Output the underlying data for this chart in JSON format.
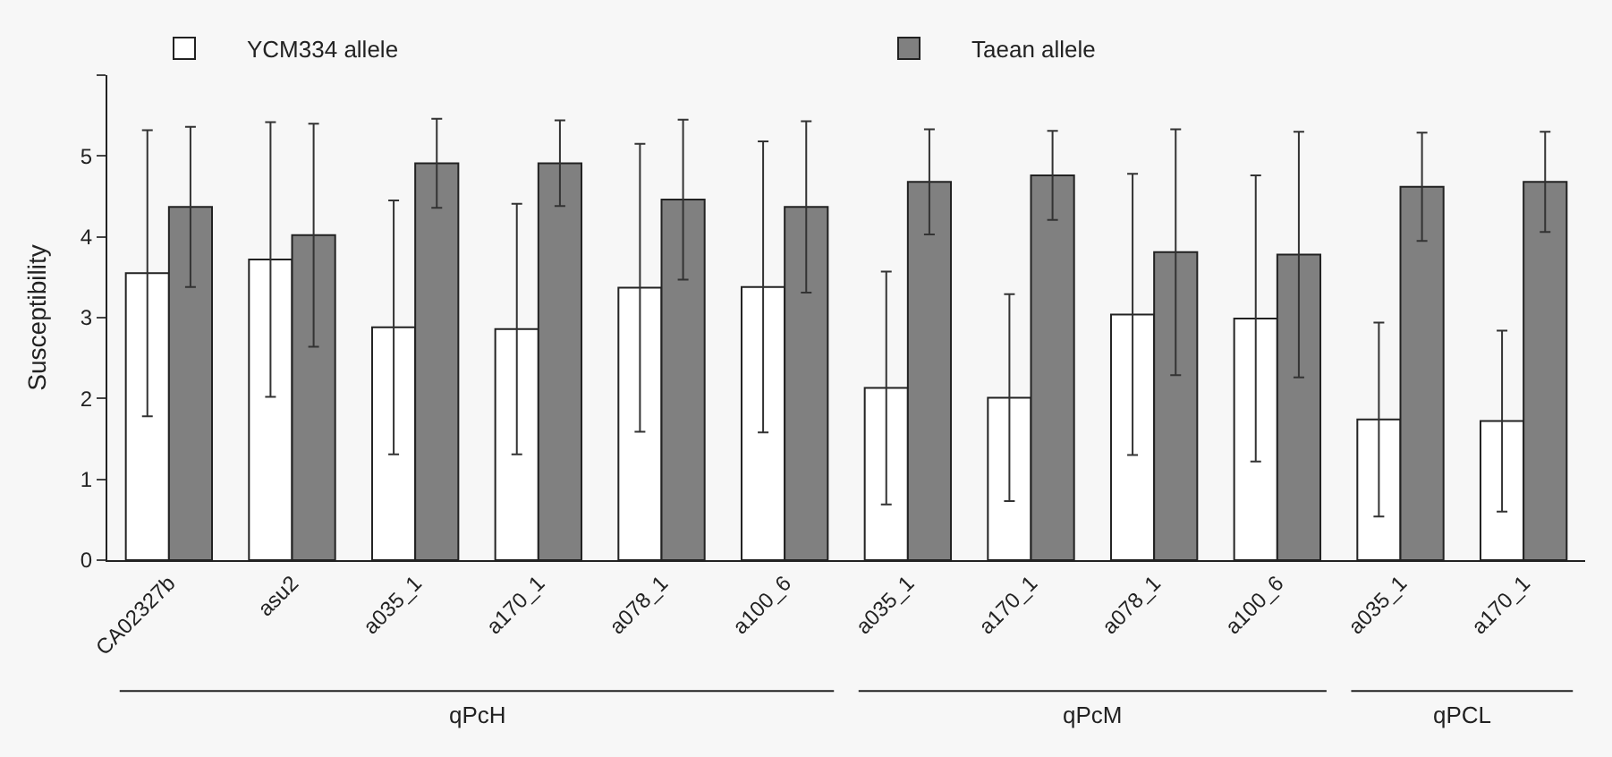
{
  "chart_data": {
    "type": "bar",
    "ylabel": "Susceptibility",
    "categories": [
      "CA02327b",
      "asu2",
      "a035_1",
      "a170_1",
      "a078_1",
      "a100_6",
      "a035_1",
      "a170_1",
      "a078_1",
      "a100_6",
      "a035_1",
      "a170_1"
    ],
    "series": [
      {
        "name": "YCM334 allele",
        "color": "#ffffff",
        "values": [
          3.55,
          3.72,
          2.88,
          2.86,
          3.37,
          3.38,
          2.13,
          2.01,
          3.04,
          2.99,
          1.74,
          1.72
        ],
        "errors": [
          1.77,
          1.7,
          1.57,
          1.55,
          1.78,
          1.8,
          1.44,
          1.28,
          1.74,
          1.77,
          1.2,
          1.12
        ]
      },
      {
        "name": "Taean allele",
        "color": "#808080",
        "values": [
          4.37,
          4.02,
          4.91,
          4.91,
          4.46,
          4.37,
          4.68,
          4.76,
          3.81,
          3.78,
          4.62,
          4.68
        ],
        "errors": [
          0.99,
          1.38,
          0.55,
          0.53,
          0.99,
          1.06,
          0.65,
          0.55,
          1.52,
          1.52,
          0.67,
          0.62
        ]
      }
    ],
    "ylim": [
      0,
      6
    ],
    "yticks": [
      0,
      1,
      2,
      3,
      4,
      5,
      {
        "value": 6,
        "label": null
      }
    ],
    "annotations": [
      "qPcH",
      "qPcM",
      "qPCL"
    ],
    "grid": false,
    "legend": "top"
  }
}
